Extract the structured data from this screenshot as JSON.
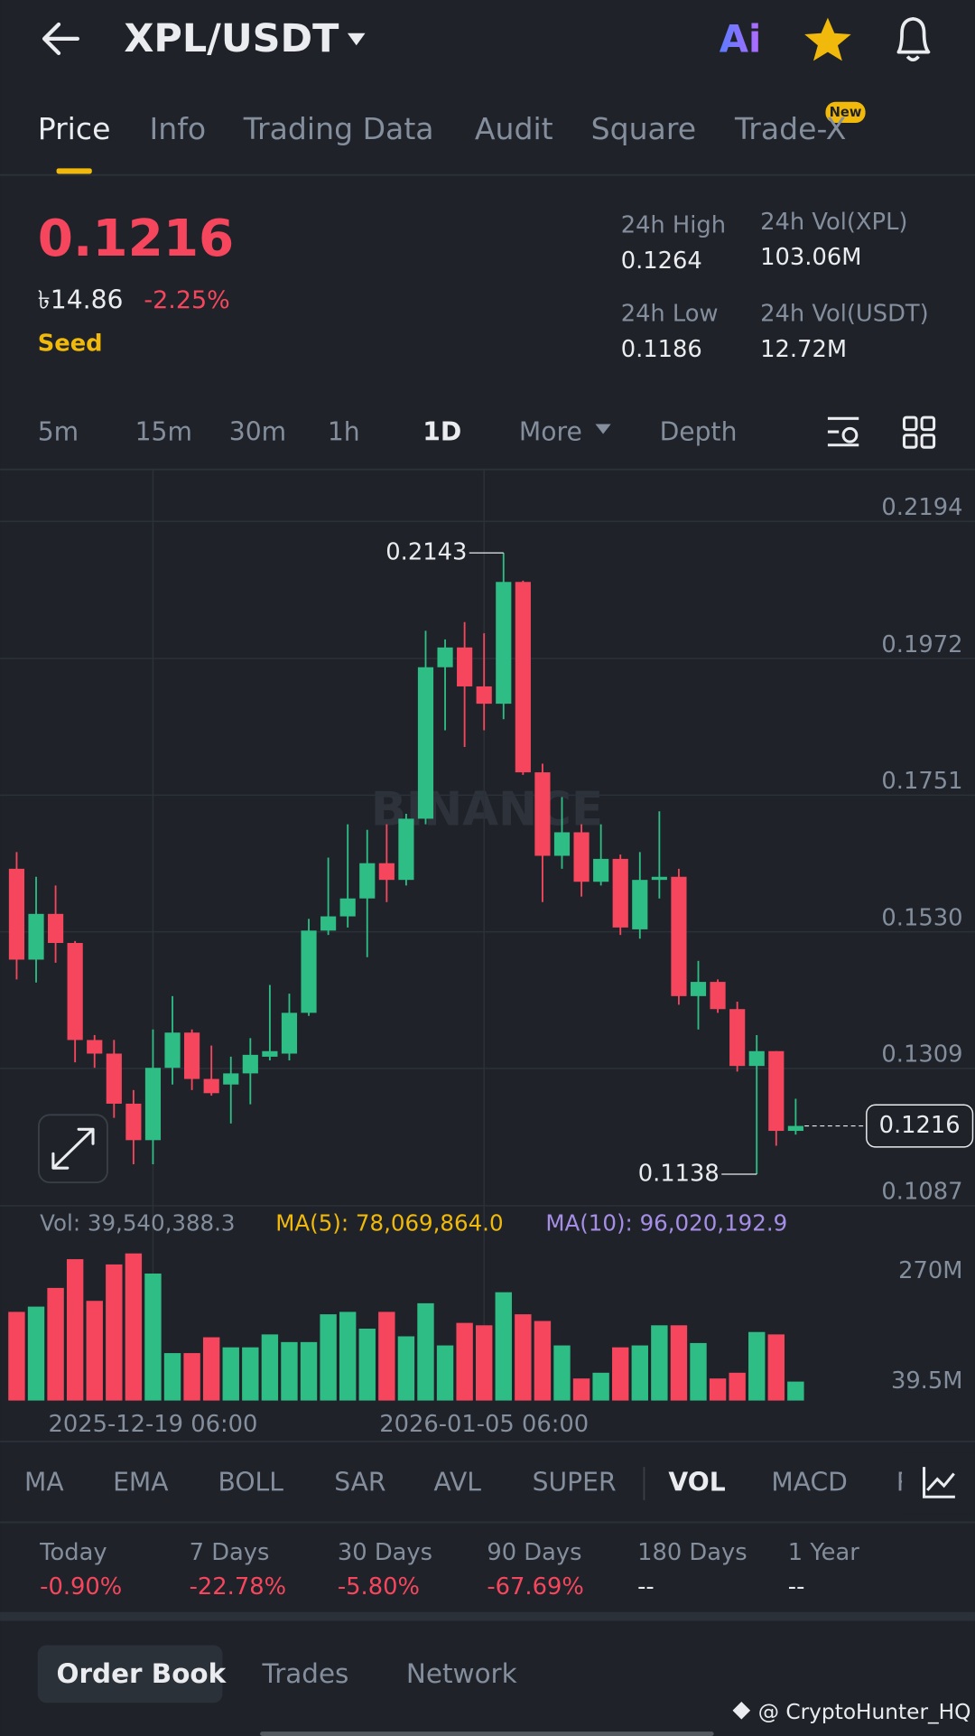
{
  "header": {
    "pair": "XPL/USDT",
    "ai": "Ai"
  },
  "tabs": [
    "Price",
    "Info",
    "Trading Data",
    "Audit",
    "Square",
    "Trade-X"
  ],
  "new_badge": "New",
  "price": {
    "last": "0.1216",
    "fiat": "৳14.86",
    "change": "-2.25%",
    "tag": "Seed"
  },
  "stats": [
    {
      "label": "24h High",
      "value": "0.1264"
    },
    {
      "label": "24h Vol(XPL)",
      "value": "103.06M"
    },
    {
      "label": "24h Low",
      "value": "0.1186"
    },
    {
      "label": "24h Vol(USDT)",
      "value": "12.72M"
    }
  ],
  "intervals": [
    "5m",
    "15m",
    "30m",
    "1h",
    "1D",
    "More",
    "Depth"
  ],
  "volume_info": {
    "vol": "Vol: 39,540,388.3",
    "ma5": "MA(5): 78,069,864.0",
    "ma10": "MA(10): 96,020,192.9"
  },
  "chart_data": {
    "type": "candlestick",
    "watermark": "BINANCE",
    "ylim": [
      0.1087,
      0.2278
    ],
    "yticks": [
      0.2194,
      0.1972,
      0.1751,
      {
        "value": 0.153,
        "label": "0.1530"
      },
      0.1309,
      0.1087
    ],
    "categories": [
      null,
      null,
      null,
      null,
      null,
      null,
      null,
      "2025-12-19 06:00",
      null,
      null,
      null,
      null,
      null,
      null,
      null,
      null,
      null,
      null,
      null,
      null,
      null,
      null,
      null,
      null,
      "2026-01-05 06:00",
      null,
      null,
      null,
      null,
      null,
      null,
      null,
      null,
      null,
      null,
      null,
      null,
      null,
      null,
      null,
      null
    ],
    "open": [
      0.1632,
      0.1485,
      0.1559,
      0.1512,
      0.1355,
      0.1333,
      0.1252,
      0.1193,
      0.131,
      0.1367,
      0.1292,
      0.1283,
      0.1301,
      0.1328,
      0.1333,
      0.1399,
      0.1532,
      0.1555,
      0.1584,
      0.1641,
      0.1614,
      0.1713,
      0.1958,
      0.199,
      0.1927,
      0.1899,
      0.2096,
      0.1788,
      0.1653,
      0.1691,
      0.1611,
      0.1648,
      0.1534,
      0.1614,
      0.1619,
      0.1426,
      0.1449,
      0.1405,
      0.1313,
      0.1337,
      0.1208
    ],
    "high": [
      0.1659,
      0.1619,
      0.1605,
      0.1515,
      0.1363,
      0.1355,
      0.1274,
      0.1372,
      0.1426,
      0.1372,
      0.1346,
      0.1328,
      0.1358,
      0.1444,
      0.143,
      0.1551,
      0.165,
      0.1704,
      0.1695,
      0.1704,
      0.1721,
      0.2017,
      0.2003,
      0.2031,
      0.2013,
      0.2143,
      0.2098,
      0.1802,
      0.1748,
      0.1704,
      0.1704,
      0.1655,
      0.1659,
      0.1725,
      0.1632,
      0.1483,
      0.1453,
      0.1417,
      0.1363,
      0.1337,
      0.126
    ],
    "low": [
      0.1453,
      0.1448,
      0.148,
      0.1319,
      0.131,
      0.1229,
      0.1154,
      0.1154,
      0.1283,
      0.1274,
      0.1265,
      0.122,
      0.1251,
      0.1322,
      0.1322,
      0.1394,
      0.1525,
      0.1537,
      0.1489,
      0.1578,
      0.1605,
      0.1704,
      0.1856,
      0.1829,
      0.1856,
      0.1874,
      0.1784,
      0.1578,
      0.1632,
      0.1587,
      0.1605,
      0.1525,
      0.1519,
      0.1584,
      0.1412,
      0.1372,
      0.1399,
      0.1304,
      0.1138,
      0.1184,
      0.1202
    ],
    "close": [
      0.1485,
      0.1559,
      0.1512,
      0.1355,
      0.1333,
      0.1252,
      0.1193,
      0.131,
      0.1367,
      0.1292,
      0.1269,
      0.1301,
      0.1331,
      0.1337,
      0.1399,
      0.1532,
      0.1555,
      0.1584,
      0.1641,
      0.1614,
      0.1713,
      0.1958,
      0.199,
      0.1927,
      0.1899,
      0.2096,
      0.1788,
      0.1653,
      0.1691,
      0.1611,
      0.1648,
      0.1537,
      0.1614,
      0.1619,
      0.1426,
      0.1449,
      0.1405,
      0.1313,
      0.1337,
      0.1208,
      0.1216
    ],
    "up_color": "#2ebd85",
    "down_color": "#f6465d",
    "high_label": 0.2143,
    "low_label": 0.1138,
    "last_price": 0.1216,
    "volume": {
      "ylim": [
        0,
        335
      ],
      "yticks": [
        {
          "value": 270,
          "label": "270M"
        },
        {
          "value": 39.5,
          "label": "39.5M"
        }
      ],
      "values": [
        185,
        196,
        235,
        295,
        208,
        284,
        307,
        265,
        99,
        99,
        132,
        111,
        111,
        138,
        122,
        122,
        180,
        185,
        150,
        185,
        134,
        203,
        115,
        162,
        157,
        226,
        180,
        166,
        115,
        46,
        58,
        111,
        115,
        157,
        157,
        120,
        46,
        58,
        143,
        138,
        39.54
      ]
    }
  },
  "indicators": [
    "MA",
    "EMA",
    "BOLL",
    "SAR",
    "AVL",
    "SUPER",
    "VOL",
    "MACD",
    "R"
  ],
  "performance": [
    {
      "label": "Today",
      "value": "-0.90%"
    },
    {
      "label": "7 Days",
      "value": "-22.78%"
    },
    {
      "label": "30 Days",
      "value": "-5.80%"
    },
    {
      "label": "90 Days",
      "value": "-67.69%"
    },
    {
      "label": "180 Days",
      "value": "--"
    },
    {
      "label": "1 Year",
      "value": "--"
    }
  ],
  "bottom_tabs": [
    "Order Book",
    "Trades",
    "Network"
  ],
  "footer_watermark": "@ CryptoHunter_HQ"
}
